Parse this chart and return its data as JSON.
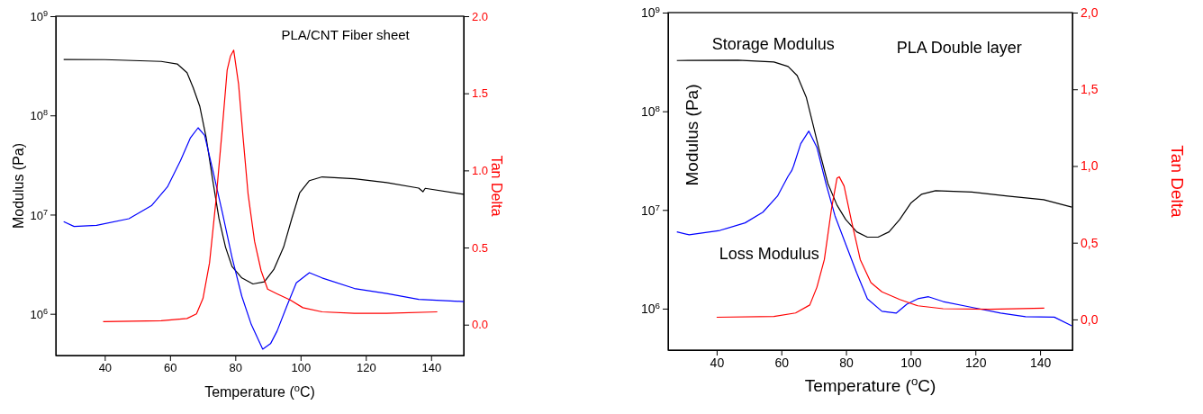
{
  "chart_data": [
    {
      "type": "line",
      "title": "PLA/CNT Fiber sheet",
      "xlabel": "Temperature ($^{o}$C)",
      "ylabel": "Modulus (Pa)",
      "y2label": "Tan Delta",
      "log": "y",
      "xlim": [
        25,
        150
      ],
      "xticks": [
        40,
        60,
        80,
        100,
        120,
        140
      ],
      "ylim": [
        380000,
        1000000000
      ],
      "yticks": [
        {
          "value": 1000000,
          "label": "10$^{6}$"
        },
        {
          "value": 10000000,
          "label": "10$^{7}$"
        },
        {
          "value": 100000000,
          "label": "10$^{8}$"
        },
        {
          "value": 1000000000,
          "label": "10$^{9}$"
        }
      ],
      "y2lim": [
        -0.2,
        2.0
      ],
      "y2ticks": [
        {
          "value": 0,
          "label": "0.0"
        },
        {
          "value": 0.5,
          "label": "0.5"
        },
        {
          "value": 1,
          "label": "1.0"
        },
        {
          "value": 1.5,
          "label": "1.5"
        },
        {
          "value": 2,
          "label": "2.0"
        }
      ],
      "series": [
        {
          "color": "#000000",
          "x": [
            27.4,
            40,
            57.3,
            62.2,
            65.2,
            67.1,
            69.1,
            71.1,
            73.1,
            75.0,
            77.0,
            79.0,
            82.0,
            85.4,
            88.9,
            91.8,
            94.8,
            97.3,
            99.7,
            102.7,
            106.6,
            116.5,
            126.4,
            136.2,
            137.5,
            138.2,
            150
          ],
          "values": [
            366000000,
            365000000,
            350000000,
            330000000,
            270000000,
            190000000,
            124000000,
            59000000,
            22000000,
            9100000,
            4700000,
            3000000,
            2300000,
            2000000,
            2100000,
            2800000,
            4700000,
            9100000,
            16500000,
            22000000,
            24000000,
            23000000,
            21000000,
            18500000,
            17000000,
            18400000,
            16000000
          ]
        },
        {
          "color": "#0000ff",
          "x": [
            27.4,
            30.6,
            37.5,
            47.4,
            54.3,
            59.2,
            63.2,
            66.2,
            68.6,
            70.6,
            73.1,
            76.0,
            79.0,
            82.0,
            84.9,
            88.4,
            90.8,
            92.8,
            95.8,
            98.7,
            102.7,
            106.6,
            116.5,
            126.4,
            136.2,
            150
          ],
          "values": [
            8500000,
            7600000,
            7800000,
            9100000,
            12300000,
            19000000,
            35000000,
            59000000,
            75000000,
            63000000,
            28000000,
            10600000,
            3700000,
            1500000,
            780000,
            440000,
            500000,
            670000,
            1200000,
            2050000,
            2600000,
            2300000,
            1800000,
            1600000,
            1400000,
            1330000
          ]
        },
        {
          "color": "#ff0000",
          "axis": "y2",
          "x": [
            39.5,
            57.3,
            65.2,
            68.1,
            70.1,
            72.1,
            74.1,
            76.0,
            77.5,
            78.5,
            79.5,
            81.0,
            82.4,
            83.9,
            85.9,
            87.9,
            89.9,
            92.8,
            96.8,
            100.7,
            106.6,
            116.5,
            126.4,
            141.9
          ],
          "values": [
            0.02,
            0.025,
            0.04,
            0.07,
            0.17,
            0.4,
            0.81,
            1.27,
            1.65,
            1.74,
            1.78,
            1.56,
            1.21,
            0.85,
            0.54,
            0.35,
            0.23,
            0.2,
            0.16,
            0.11,
            0.083,
            0.073,
            0.073,
            0.083
          ]
        }
      ]
    },
    {
      "type": "line",
      "title": "PLA Double layer",
      "xlabel": "Temperature ($^{o}$C)",
      "ylabel": "Modulus (Pa)",
      "y2label": "Tan Delta",
      "log": "y",
      "xlim": [
        25,
        150
      ],
      "xticks": [
        40,
        60,
        80,
        100,
        120,
        140
      ],
      "ylim": [
        380000,
        1000000000
      ],
      "yticks": [
        {
          "value": 1000000,
          "label": "10$^{6}$"
        },
        {
          "value": 10000000,
          "label": "10$^{7}$"
        },
        {
          "value": 100000000,
          "label": "10$^{8}$"
        },
        {
          "value": 1000000000,
          "label": "10$^{9}$"
        }
      ],
      "y2lim": [
        -0.2,
        2.0
      ],
      "y2ticks": [
        {
          "value": 0,
          "label": "0,0"
        },
        {
          "value": 0.5,
          "label": "0,5"
        },
        {
          "value": 1,
          "label": "1,0"
        },
        {
          "value": 1.5,
          "label": "1,5"
        },
        {
          "value": 2,
          "label": "2,0"
        }
      ],
      "series": [
        {
          "name": "Storage Modulus",
          "color": "#000000",
          "x": [
            27.7,
            46.6,
            57.7,
            62.1,
            64.9,
            67.7,
            69.9,
            72.1,
            74.4,
            77.2,
            79.9,
            83.3,
            86.6,
            89.9,
            93.3,
            96.6,
            100.0,
            103.3,
            107.7,
            118.9,
            130.0,
            141.1,
            149.8
          ],
          "values": [
            327000000,
            330000000,
            316000000,
            284000000,
            230000000,
            139000000,
            71000000,
            36000000,
            18500000,
            11200000,
            8000000,
            6000000,
            5300000,
            5300000,
            6000000,
            8000000,
            11700000,
            14400000,
            15700000,
            15200000,
            13800000,
            12700000,
            10700000
          ]
        },
        {
          "name": "Loss Modulus",
          "color": "#0000ff",
          "x": [
            27.7,
            31.5,
            41.0,
            48.8,
            54.3,
            58.8,
            62.1,
            63.2,
            63.8,
            66.0,
            68.5,
            71.0,
            73.8,
            76.6,
            79.9,
            83.3,
            86.6,
            91.1,
            95.5,
            98.8,
            102.2,
            105.5,
            110.0,
            118.9,
            127.8,
            135.5,
            144.4,
            149.8
          ],
          "values": [
            6000000,
            5600000,
            6200000,
            7400000,
            9500000,
            13800000,
            22000000,
            25000000,
            28000000,
            47000000,
            63000000,
            43000000,
            18500000,
            8700000,
            4500000,
            2300000,
            1260000,
            940000,
            900000,
            1110000,
            1260000,
            1320000,
            1180000,
            1030000,
            900000,
            830000,
            820000,
            670000
          ]
        },
        {
          "color": "#ff0000",
          "axis": "y2",
          "x": [
            40,
            57.7,
            64.4,
            68.8,
            71.0,
            73.3,
            75.5,
            77.2,
            77.9,
            79.4,
            81.6,
            84.4,
            87.7,
            91.1,
            96.6,
            102.2,
            110.0,
            124.4,
            141.3
          ],
          "values": [
            0.014,
            0.019,
            0.042,
            0.094,
            0.21,
            0.39,
            0.72,
            0.92,
            0.93,
            0.87,
            0.65,
            0.39,
            0.24,
            0.18,
            0.13,
            0.089,
            0.07,
            0.066,
            0.073
          ]
        }
      ]
    }
  ]
}
